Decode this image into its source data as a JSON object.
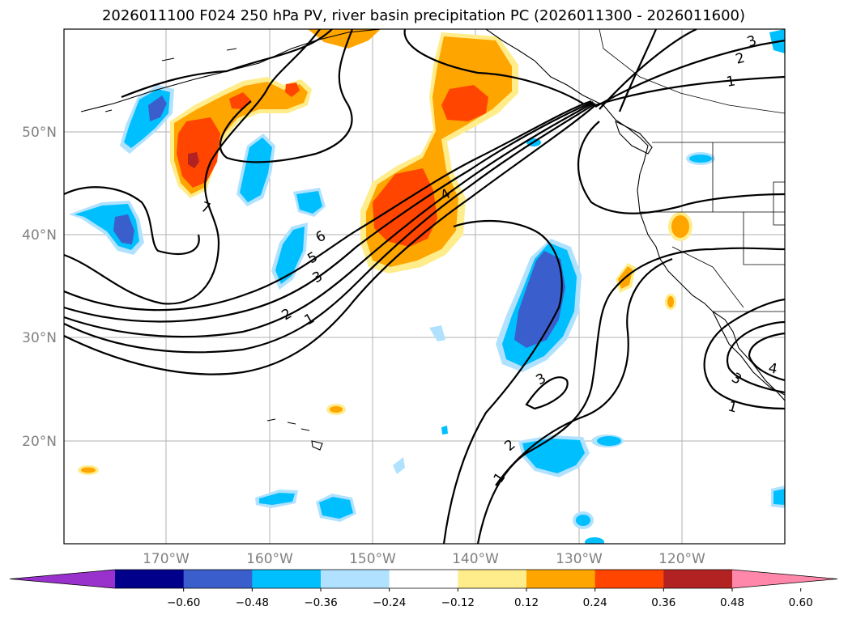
{
  "title": "2026011100 F024 250 hPa PV, river basin precipitation PC (2026011300 - 2026011600)",
  "map": {
    "lat_labels": [
      "50°N",
      "40°N",
      "30°N",
      "20°N"
    ],
    "lon_labels": [
      "170°W",
      "160°W",
      "150°W",
      "140°W",
      "130°W",
      "120°W"
    ],
    "pv_contour_labels": [
      "1",
      "2",
      "3",
      "4",
      "5",
      "6",
      "7"
    ],
    "pv_contour_values_shown": {
      "north_jet": [
        "1",
        "2",
        "3"
      ],
      "main_jet": [
        "1",
        "2",
        "3",
        "5",
        "6",
        "4",
        "7"
      ],
      "trough_south": [
        "1",
        "2",
        "3"
      ],
      "low_southeast": [
        "1",
        "3",
        "4"
      ]
    }
  },
  "colorbar": {
    "tick_labels": [
      "−0.60",
      "−0.48",
      "−0.36",
      "−0.24",
      "−0.12",
      "0.12",
      "0.24",
      "0.36",
      "0.48",
      "0.60"
    ],
    "colors": [
      "#9932cc",
      "#00008b",
      "#3a5fcd",
      "#00bfff",
      "#b0e2ff",
      "#ffffff",
      "#ffec8b",
      "#ffa500",
      "#ff4500",
      "#b22222",
      "#ff88aa"
    ]
  }
}
